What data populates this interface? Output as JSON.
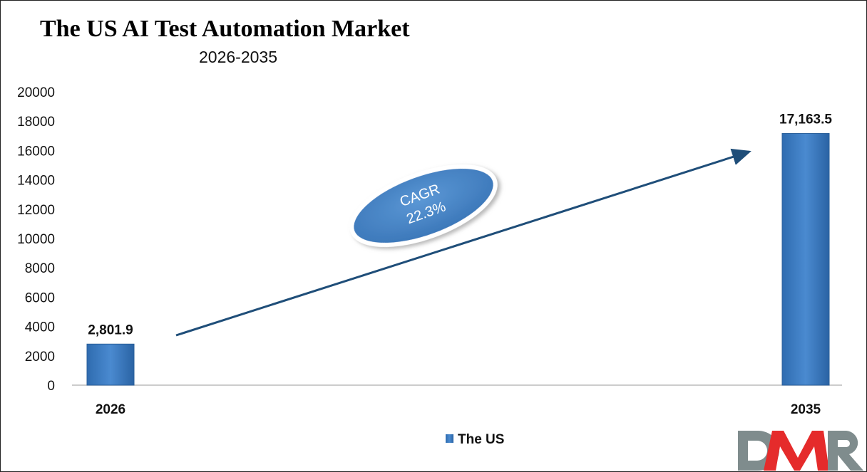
{
  "chart_data": {
    "type": "bar",
    "title": "The US AI Test Automation Market",
    "subtitle": "2026-2035",
    "categories": [
      "2026",
      "2035"
    ],
    "series": [
      {
        "name": "The US",
        "values": [
          2801.9,
          17163.5
        ],
        "labels": [
          "2,801.9",
          "17,163.5"
        ],
        "color": "#3a7cc4"
      }
    ],
    "ylim": [
      0,
      20000
    ],
    "yticks": [
      0,
      2000,
      4000,
      6000,
      8000,
      10000,
      12000,
      14000,
      16000,
      18000,
      20000
    ],
    "grid": false,
    "legend": "bottom",
    "annotation": {
      "line1": "CAGR",
      "line2": "22.3%"
    }
  },
  "logo": {
    "text": "DMR",
    "colors": [
      "#7f8c8d",
      "#e52b2b"
    ]
  }
}
